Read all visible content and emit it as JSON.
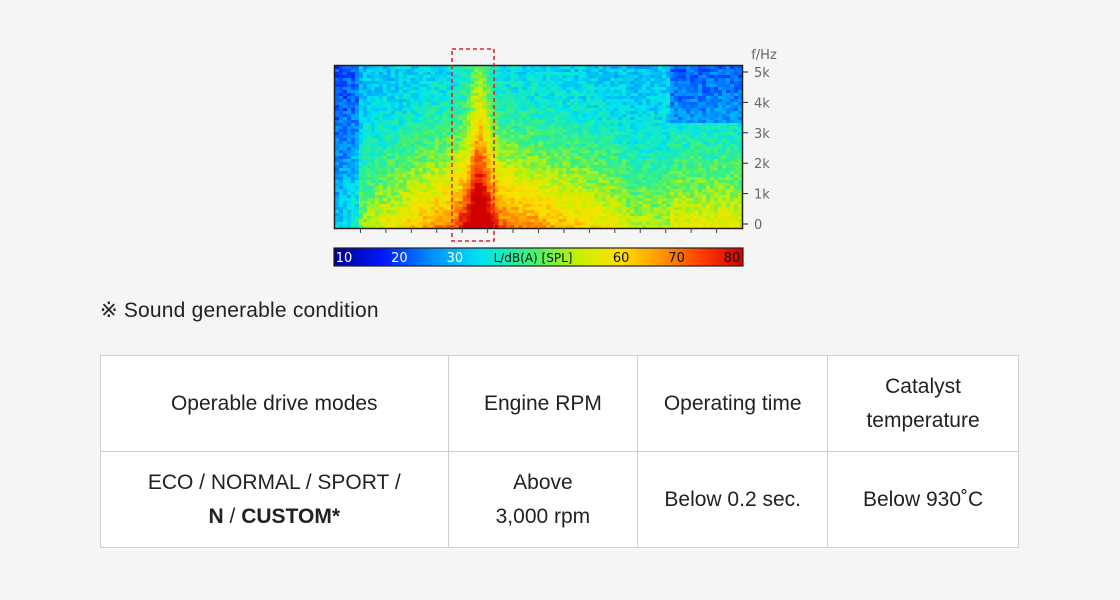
{
  "chart_data": {
    "type": "heatmap",
    "title": "",
    "xlabel": "",
    "ylabel": "f/Hz",
    "y_ticks": [
      "0",
      "1k",
      "2k",
      "3k",
      "4k",
      "5k"
    ],
    "y_tick_values": [
      0,
      1000,
      2000,
      3000,
      4000,
      5000
    ],
    "ylim": [
      0,
      5000
    ],
    "colorbar": {
      "label": "L/dB(A) [SPL]",
      "ticks": [
        "10",
        "20",
        "30",
        "60",
        "70",
        "80"
      ],
      "tick_values": [
        10,
        20,
        30,
        60,
        70,
        80
      ],
      "range": [
        10,
        80
      ]
    },
    "highlight": {
      "style": "dashed",
      "color": "#e0242b"
    }
  },
  "note": "※ Sound generable condition",
  "table": {
    "headers": {
      "modes": "Operable drive modes",
      "rpm": "Engine RPM",
      "time": "Operating time",
      "catalyst_line1": "Catalyst",
      "catalyst_line2": "temperature"
    },
    "row": {
      "modes_line1": "ECO / NORMAL / SPORT /",
      "modes_n": "N",
      "modes_sep": " / ",
      "modes_custom": "CUSTOM*",
      "rpm_line1": "Above",
      "rpm_line2": "3,000 rpm",
      "time": "Below 0.2 sec.",
      "catalyst": "Below 930˚C"
    }
  }
}
